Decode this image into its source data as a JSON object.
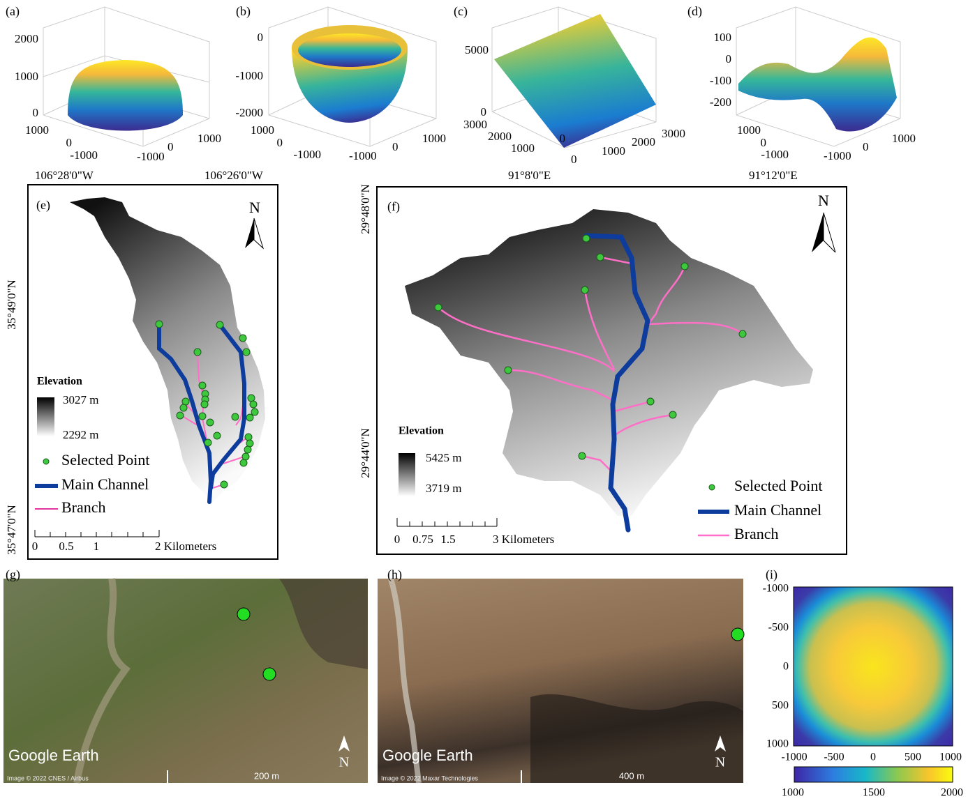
{
  "panels": {
    "a": {
      "label": "(a)",
      "z_ticks": [
        "2000",
        "1000",
        "0"
      ],
      "x_ticks": [
        "1000",
        "0",
        "-1000"
      ],
      "y_ticks": [
        "-1000",
        "0",
        "1000"
      ]
    },
    "b": {
      "label": "(b)",
      "z_ticks": [
        "0",
        "-1000",
        "-2000"
      ],
      "x_ticks": [
        "1000",
        "0",
        "-1000"
      ],
      "y_ticks": [
        "-1000",
        "0",
        "1000"
      ]
    },
    "c": {
      "label": "(c)",
      "z_ticks": [
        "5000",
        "0"
      ],
      "x_ticks": [
        "3000",
        "2000",
        "1000",
        "0"
      ],
      "y_ticks": [
        "0",
        "1000",
        "2000",
        "3000"
      ]
    },
    "d": {
      "label": "(d)",
      "z_ticks": [
        "100",
        "0",
        "-100",
        "-200"
      ],
      "x_ticks": [
        "1000",
        "0",
        "-1000"
      ],
      "y_ticks": [
        "-1000",
        "0",
        "1000"
      ]
    },
    "e": {
      "label": "(e)",
      "top_coords": [
        "106°28'0\"W",
        "106°26'0\"W"
      ],
      "side_coords": [
        "35°49'0\"N",
        "35°47'0\"N"
      ],
      "north": "N",
      "legend": {
        "title": "Elevation",
        "high": "3027 m",
        "low": "2292 m",
        "items": [
          "Selected Point",
          "Main Channel",
          "Branch"
        ]
      },
      "scale": [
        "0",
        "0.5",
        "1",
        "2 Kilometers"
      ]
    },
    "f": {
      "label": "(f)",
      "top_coords": [
        "91°8'0\"E",
        "91°12'0\"E"
      ],
      "side_coords": [
        "29°48'0\"N",
        "29°44'0\"N"
      ],
      "north": "N",
      "legend": {
        "title": "Elevation",
        "high": "5425 m",
        "low": "3719 m",
        "items": [
          "Selected Point",
          "Main Channel",
          "Branch"
        ]
      },
      "scale": [
        "0",
        "0.75",
        "1.5",
        "3 Kilometers"
      ]
    },
    "g": {
      "label": "(g)",
      "brand": "Google Earth",
      "credit": "Image © 2022 CNES / Airbus",
      "scale": "200 m",
      "north": "N"
    },
    "h": {
      "label": "(h)",
      "brand": "Google Earth",
      "credit": "Image © 2022 Maxar Technologies",
      "scale": "400 m",
      "north": "N"
    },
    "i": {
      "label": "(i)",
      "y_ticks": [
        "-1000",
        "-500",
        "0",
        "500",
        "1000"
      ],
      "x_ticks": [
        "-1000",
        "-500",
        "0",
        "500",
        "1000"
      ],
      "colorbar_ticks": [
        "1000",
        "1500",
        "2000"
      ]
    }
  }
}
